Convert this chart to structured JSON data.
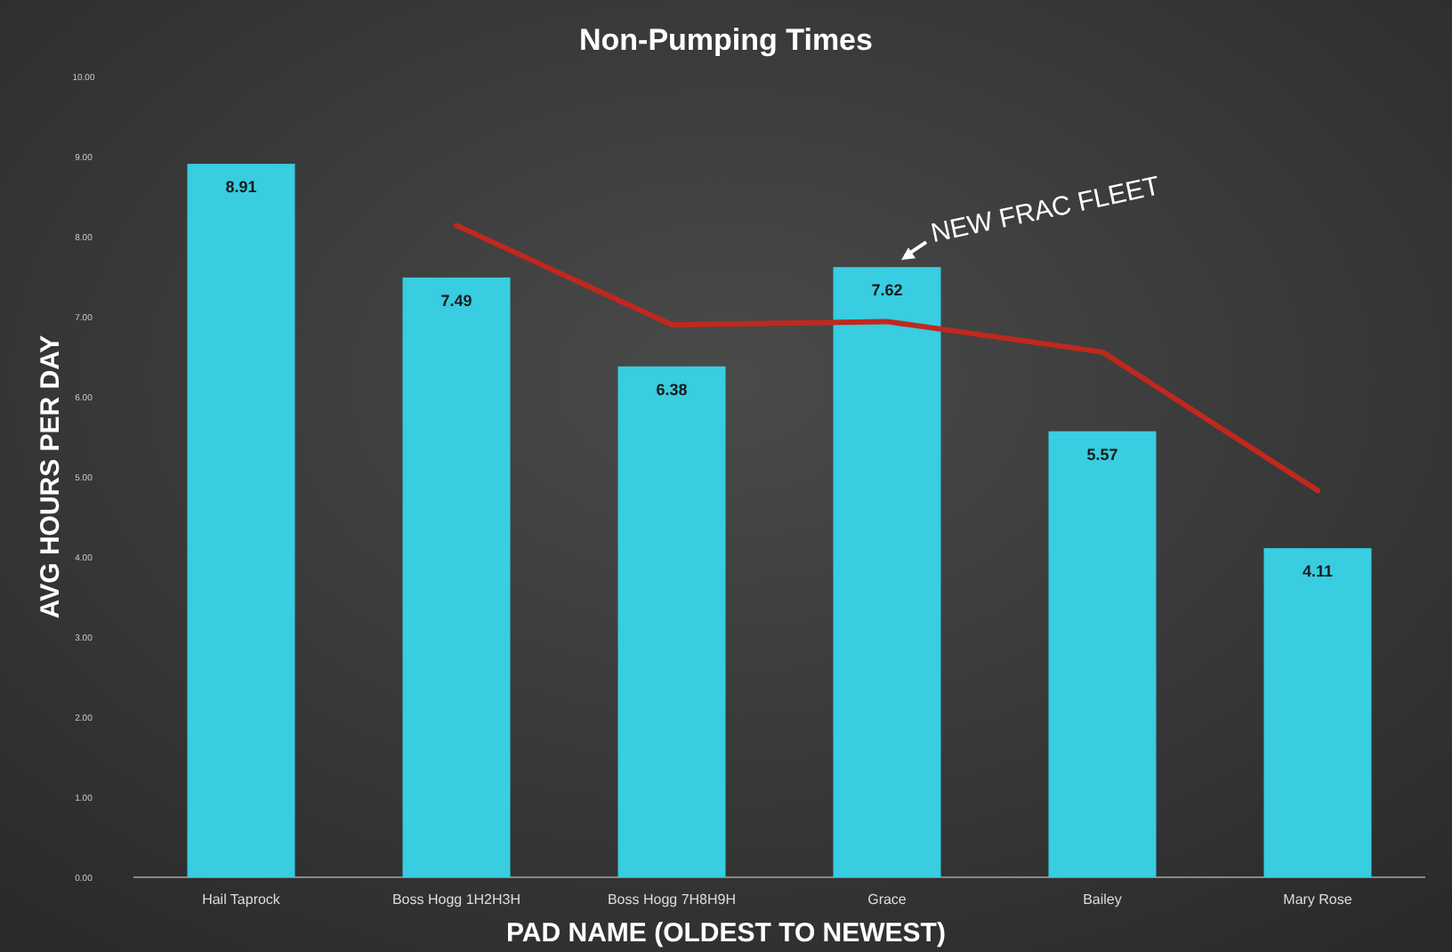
{
  "chart_data": {
    "type": "bar",
    "title": "Non-Pumping Times",
    "xlabel": "PAD NAME (OLDEST TO NEWEST)",
    "ylabel": "AVG HOURS PER DAY",
    "categories": [
      "Hail Taprock",
      "Boss Hogg 1H2H3H",
      "Boss Hogg 7H8H9H",
      "Grace",
      "Bailey",
      "Mary Rose"
    ],
    "series": [
      {
        "color": "#38cde0",
        "values": [
          8.91,
          7.49,
          6.38,
          7.62,
          5.57,
          4.11
        ],
        "value_labels": [
          "8.91",
          "7.49",
          "6.38",
          "7.62",
          "5.57",
          "4.11"
        ]
      },
      {
        "type": "line",
        "color": "#c0281e",
        "values": [
          null,
          8.14,
          6.9,
          6.94,
          6.56,
          4.83
        ]
      }
    ],
    "ylim": [
      0,
      10
    ],
    "yticks": [
      {
        "value": 0,
        "label": "0.00"
      },
      {
        "value": 1,
        "label": "1.00"
      },
      {
        "value": 2,
        "label": "2.00"
      },
      {
        "value": 3,
        "label": "3.00"
      },
      {
        "value": 4,
        "label": "4.00"
      },
      {
        "value": 5,
        "label": "5.00"
      },
      {
        "value": 6,
        "label": "6.00"
      },
      {
        "value": 7,
        "label": "7.00"
      },
      {
        "value": 8,
        "label": "8.00"
      },
      {
        "value": 9,
        "label": "9.00"
      },
      {
        "value": 10,
        "label": "10.00"
      }
    ],
    "annotations": [
      {
        "text": "NEW FRAC FLEET",
        "x": "Grace",
        "y": 7.62
      }
    ],
    "grid": false,
    "marker": "none",
    "line_style": "solid"
  }
}
